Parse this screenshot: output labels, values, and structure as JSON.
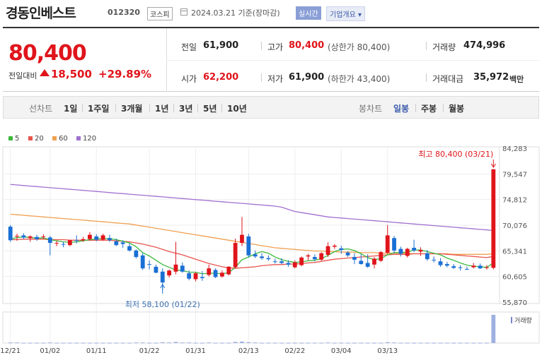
{
  "header": {
    "name": "경동인베스트",
    "code": "012320",
    "market": "코스피",
    "date": "2024.03.21  기준(장마감)",
    "realtime": "실시간",
    "company_info": "기업개요 ▾"
  },
  "summary": {
    "price": "80,400",
    "change_label": "전일대비",
    "change": "18,500",
    "change_pct": "+29.89%",
    "prev_close_label": "전일",
    "prev_close": "61,900",
    "high_label": "고가",
    "high": "80,400",
    "upper_limit": "(상한가 80,400)",
    "volume_label": "거래량",
    "volume": "474,996",
    "open_label": "시가",
    "open": "62,200",
    "low_label": "저가",
    "low": "61,900",
    "lower_limit": "(하한가 43,400)",
    "amount_label": "거래대금",
    "amount": "35,972",
    "amount_unit": "백만"
  },
  "tabs": {
    "line_label": "선차트",
    "periods": [
      "1일",
      "1주일",
      "3개월",
      "1년",
      "3년",
      "5년",
      "10년"
    ],
    "candle_label": "봉차트",
    "candles": [
      "일봉",
      "주봉",
      "월봉"
    ],
    "active_candle": "일봉"
  },
  "colors": {
    "up": "#e0141b",
    "down": "#1a6fd4",
    "ma5": "#3cb83c",
    "ma20": "#e8554e",
    "ma60": "#f0a050",
    "ma120": "#a070d0"
  },
  "chart_data": {
    "type": "candlestick",
    "legend": [
      "5",
      "20",
      "60",
      "120"
    ],
    "y_ticks": [
      "84,283",
      "79,547",
      "74,812",
      "70,076",
      "65,341",
      "60,605",
      "55,870"
    ],
    "ylim": [
      55870,
      84283
    ],
    "x_ticks": [
      "12/21",
      "01/02",
      "01/11",
      "01/22",
      "01/31",
      "02/13",
      "02/22",
      "03/04",
      "03/13"
    ],
    "annotation_high": "최고 80,400 (03/21)",
    "annotation_low": "최저 58,100 (01/22)",
    "volume_label": "거래량",
    "candles": [
      [
        69800,
        70100,
        67000,
        67300
      ],
      [
        68000,
        68500,
        67200,
        68100
      ],
      [
        68200,
        68600,
        67500,
        67800
      ],
      [
        67700,
        68200,
        67000,
        68000
      ],
      [
        67900,
        68300,
        67200,
        67500
      ],
      [
        68000,
        68400,
        67600,
        68000
      ],
      [
        67800,
        68100,
        64500,
        66800
      ],
      [
        66700,
        67200,
        66200,
        66800
      ],
      [
        66600,
        67000,
        66000,
        66500
      ],
      [
        66400,
        67400,
        66200,
        67300
      ],
      [
        67300,
        68200,
        66700,
        67200
      ],
      [
        67300,
        67900,
        67000,
        67500
      ],
      [
        67500,
        68800,
        67200,
        68300
      ],
      [
        68000,
        68400,
        67100,
        67400
      ],
      [
        67400,
        68500,
        67200,
        68200
      ],
      [
        67700,
        68300,
        67000,
        67300
      ],
      [
        67100,
        67600,
        66200,
        66400
      ],
      [
        66900,
        67300,
        65900,
        66600
      ],
      [
        66200,
        66700,
        65200,
        65400
      ],
      [
        65400,
        65600,
        63900,
        64200
      ],
      [
        64500,
        64900,
        61800,
        62100
      ],
      [
        62900,
        63600,
        61900,
        62800
      ],
      [
        62400,
        62800,
        61200,
        61300
      ],
      [
        61500,
        62100,
        58100,
        59500
      ],
      [
        60800,
        61900,
        60400,
        61700
      ],
      [
        61500,
        67000,
        61000,
        62800
      ],
      [
        62600,
        63200,
        61300,
        61500
      ],
      [
        61200,
        61700,
        59900,
        60200
      ],
      [
        60100,
        61400,
        59700,
        61200
      ],
      [
        60500,
        61600,
        59800,
        60300
      ],
      [
        60900,
        62800,
        60600,
        62100
      ],
      [
        61800,
        62100,
        60300,
        60500
      ],
      [
        60600,
        61700,
        60400,
        61300
      ],
      [
        61000,
        62500,
        60800,
        62400
      ],
      [
        62300,
        67600,
        62100,
        66800
      ],
      [
        66800,
        71600,
        66200,
        68300
      ],
      [
        68000,
        68500,
        64100,
        64500
      ],
      [
        64700,
        65400,
        64000,
        64300
      ],
      [
        64300,
        64900,
        63700,
        64000
      ],
      [
        64000,
        64500,
        63500,
        63800
      ],
      [
        63400,
        63900,
        63000,
        63300
      ],
      [
        63400,
        64000,
        62900,
        63100
      ],
      [
        63100,
        63600,
        62400,
        62800
      ],
      [
        62300,
        63600,
        62100,
        63200
      ],
      [
        62700,
        64300,
        62500,
        64100
      ],
      [
        64300,
        64800,
        63600,
        64500
      ],
      [
        64200,
        64700,
        63400,
        63800
      ],
      [
        63700,
        65100,
        63500,
        64900
      ],
      [
        64600,
        66900,
        64200,
        66200
      ],
      [
        66100,
        66600,
        65700,
        66300
      ],
      [
        65800,
        66300,
        64800,
        65500
      ],
      [
        65000,
        65300,
        64200,
        64500
      ],
      [
        64200,
        64900,
        62900,
        63700
      ],
      [
        63500,
        64700,
        62800,
        62900
      ],
      [
        63100,
        64700,
        62200,
        62400
      ],
      [
        62800,
        64200,
        62100,
        63900
      ],
      [
        63500,
        65300,
        63300,
        65100
      ],
      [
        65000,
        70100,
        64700,
        68200
      ],
      [
        67700,
        68100,
        64900,
        65400
      ],
      [
        65700,
        66100,
        64300,
        64800
      ],
      [
        64400,
        65900,
        64100,
        65700
      ],
      [
        65900,
        67400,
        65100,
        65400
      ],
      [
        65200,
        66000,
        64400,
        65500
      ],
      [
        64900,
        65500,
        63500,
        63800
      ],
      [
        63700,
        64300,
        63200,
        63600
      ],
      [
        63400,
        64000,
        62400,
        62700
      ],
      [
        62900,
        63300,
        62300,
        62600
      ],
      [
        62500,
        62900,
        62000,
        62200
      ],
      [
        62300,
        62700,
        61700,
        62200
      ],
      [
        62000,
        62400,
        61800,
        61900
      ],
      [
        62300,
        63100,
        62100,
        62600
      ],
      [
        62600,
        63000,
        62000,
        62100
      ],
      [
        62200,
        62700,
        61900,
        62300
      ],
      [
        62200,
        80400,
        61900,
        80400
      ]
    ],
    "volumes": [
      2,
      2,
      1,
      1,
      1,
      1,
      2,
      1,
      1,
      1,
      1,
      1,
      1,
      1,
      1,
      1,
      1,
      1,
      1,
      2,
      2,
      1,
      1,
      3,
      2,
      4,
      2,
      2,
      1,
      1,
      2,
      1,
      1,
      1,
      4,
      5,
      3,
      2,
      1,
      1,
      1,
      1,
      1,
      1,
      1,
      1,
      1,
      1,
      2,
      1,
      1,
      1,
      1,
      1,
      1,
      1,
      1,
      3,
      2,
      1,
      1,
      1,
      1,
      1,
      1,
      1,
      1,
      1,
      1,
      1,
      1,
      1,
      1,
      100
    ],
    "ma5": [
      67500,
      67800,
      67900,
      67800,
      67700,
      67700,
      67400,
      67200,
      67000,
      66900,
      67000,
      67200,
      67400,
      67500,
      67600,
      67600,
      67400,
      67100,
      66800,
      66100,
      65000,
      64400,
      63600,
      62800,
      62300,
      61800,
      61700,
      61400,
      61400,
      61100,
      61200,
      61200,
      61100,
      61300,
      62300,
      63700,
      64200,
      64800,
      65200,
      64900,
      64200,
      63700,
      63400,
      63200,
      63300,
      63500,
      63600,
      63900,
      64500,
      65200,
      65600,
      65700,
      65400,
      64800,
      64100,
      63700,
      63900,
      64600,
      65000,
      65000,
      65100,
      65500,
      65500,
      65200,
      64900,
      64600,
      64000,
      63600,
      63100,
      62700,
      62500,
      62400,
      62300,
      63100
    ],
    "ma20": [
      67400,
      67400,
      67500,
      67500,
      67500,
      67500,
      67400,
      67400,
      67400,
      67300,
      67300,
      67300,
      67300,
      67300,
      67300,
      67300,
      67200,
      67100,
      67000,
      66800,
      66600,
      66300,
      66000,
      65600,
      65200,
      64900,
      64600,
      64200,
      63800,
      63400,
      63000,
      62700,
      62400,
      62200,
      62100,
      62200,
      62300,
      62400,
      62600,
      62700,
      62800,
      62800,
      62900,
      62900,
      63000,
      63100,
      63200,
      63400,
      63600,
      63800,
      63900,
      64000,
      64100,
      64200,
      64300,
      64400,
      64500,
      64600,
      64700,
      64700,
      64700,
      64800,
      64800,
      64800,
      64800,
      64800,
      64700,
      64600,
      64500,
      64400,
      64300,
      64200,
      64100,
      64300
    ],
    "ma60": [
      72100,
      72000,
      71900,
      71800,
      71700,
      71600,
      71500,
      71400,
      71300,
      71200,
      71100,
      71000,
      70900,
      70800,
      70700,
      70600,
      70500,
      70400,
      70300,
      70100,
      69900,
      69700,
      69500,
      69300,
      69100,
      68900,
      68700,
      68500,
      68300,
      68100,
      67900,
      67700,
      67500,
      67300,
      67100,
      66900,
      66700,
      66500,
      66300,
      66100,
      65900,
      65800,
      65700,
      65600,
      65500,
      65400,
      65300,
      65300,
      65200,
      65200,
      65100,
      65100,
      65100,
      65000,
      65000,
      65000,
      64900,
      64900,
      64900,
      64900,
      64900,
      64800,
      64800,
      64800,
      64800,
      64800,
      64800,
      64700,
      64700,
      64700,
      64700,
      64700,
      64700,
      64800
    ],
    "ma120": [
      77600,
      77500,
      77400,
      77300,
      77200,
      77100,
      77000,
      76900,
      76800,
      76700,
      76600,
      76500,
      76400,
      76300,
      76200,
      76100,
      76000,
      75900,
      75800,
      75700,
      75600,
      75500,
      75400,
      75300,
      75200,
      75100,
      75000,
      74900,
      74800,
      74700,
      74600,
      74500,
      74400,
      74300,
      74200,
      74100,
      74000,
      73900,
      73800,
      73700,
      73600,
      73400,
      73000,
      72600,
      72400,
      72200,
      72000,
      71800,
      71600,
      71500,
      71400,
      71300,
      71200,
      71100,
      71000,
      70900,
      70800,
      70700,
      70600,
      70500,
      70400,
      70300,
      70200,
      70100,
      70000,
      69900,
      69800,
      69700,
      69600,
      69500,
      69400,
      69300,
      69200,
      69100
    ]
  }
}
